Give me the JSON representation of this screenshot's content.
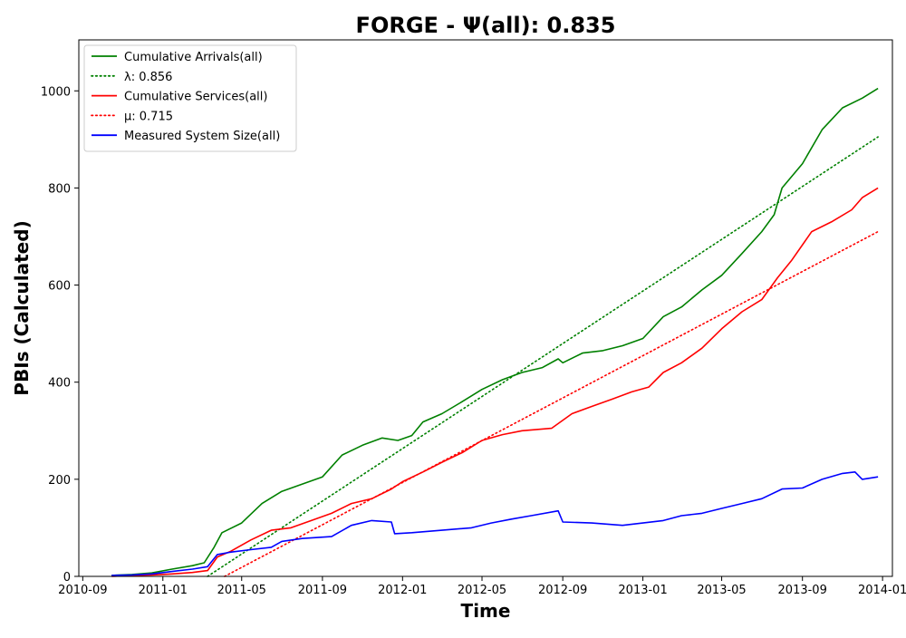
{
  "chart_data": {
    "type": "line",
    "title": "FORGE -  Ψ(all): 0.835",
    "xlabel": "Time",
    "ylabel": "PBIs (Calculated)",
    "x_ticks": [
      "2010-09",
      "2011-01",
      "2011-05",
      "2011-09",
      "2012-01",
      "2012-05",
      "2012-09",
      "2013-01",
      "2013-05",
      "2013-09",
      "2014-01"
    ],
    "y_ticks": [
      0,
      200,
      400,
      600,
      800,
      1000
    ],
    "xlim": [
      "2010-08-26",
      "2014-01-16"
    ],
    "ylim": [
      0,
      1105
    ],
    "grid": false,
    "legend_position": "upper left",
    "series": [
      {
        "name": "Cumulative Arrivals(all)",
        "color": "#008000",
        "style": "solid",
        "points": [
          [
            "2010-10-15",
            2
          ],
          [
            "2010-11-15",
            4
          ],
          [
            "2010-12-15",
            7
          ],
          [
            "2011-01-15",
            15
          ],
          [
            "2011-02-15",
            22
          ],
          [
            "2011-03-05",
            28
          ],
          [
            "2011-03-20",
            60
          ],
          [
            "2011-04-01",
            90
          ],
          [
            "2011-05-01",
            110
          ],
          [
            "2011-06-01",
            150
          ],
          [
            "2011-07-01",
            175
          ],
          [
            "2011-08-01",
            190
          ],
          [
            "2011-09-01",
            205
          ],
          [
            "2011-10-01",
            250
          ],
          [
            "2011-11-01",
            270
          ],
          [
            "2011-12-01",
            285
          ],
          [
            "2011-12-25",
            280
          ],
          [
            "2012-01-15",
            290
          ],
          [
            "2012-02-01",
            318
          ],
          [
            "2012-03-01",
            335
          ],
          [
            "2012-04-01",
            360
          ],
          [
            "2012-05-01",
            385
          ],
          [
            "2012-06-01",
            405
          ],
          [
            "2012-07-01",
            420
          ],
          [
            "2012-08-01",
            430
          ],
          [
            "2012-08-25",
            448
          ],
          [
            "2012-09-01",
            440
          ],
          [
            "2012-10-01",
            460
          ],
          [
            "2012-11-01",
            465
          ],
          [
            "2012-12-01",
            475
          ],
          [
            "2013-01-01",
            490
          ],
          [
            "2013-02-01",
            535
          ],
          [
            "2013-03-01",
            555
          ],
          [
            "2013-04-01",
            590
          ],
          [
            "2013-05-01",
            620
          ],
          [
            "2013-06-01",
            665
          ],
          [
            "2013-07-01",
            710
          ],
          [
            "2013-07-20",
            745
          ],
          [
            "2013-08-01",
            800
          ],
          [
            "2013-09-01",
            850
          ],
          [
            "2013-10-01",
            920
          ],
          [
            "2013-11-01",
            965
          ],
          [
            "2013-12-01",
            985
          ],
          [
            "2013-12-25",
            1005
          ]
        ]
      },
      {
        "name": "λ: 0.856",
        "color": "#008000",
        "style": "dotted",
        "points": [
          [
            "2011-03-10",
            0
          ],
          [
            "2013-12-25",
            905
          ]
        ]
      },
      {
        "name": "Cumulative Services(all)",
        "color": "#ff0000",
        "style": "solid",
        "points": [
          [
            "2010-10-15",
            0
          ],
          [
            "2010-11-15",
            2
          ],
          [
            "2010-12-15",
            3
          ],
          [
            "2011-01-15",
            5
          ],
          [
            "2011-02-15",
            8
          ],
          [
            "2011-03-10",
            12
          ],
          [
            "2011-03-25",
            40
          ],
          [
            "2011-04-15",
            52
          ],
          [
            "2011-05-15",
            75
          ],
          [
            "2011-06-15",
            95
          ],
          [
            "2011-07-15",
            100
          ],
          [
            "2011-08-15",
            115
          ],
          [
            "2011-09-15",
            130
          ],
          [
            "2011-10-15",
            150
          ],
          [
            "2011-11-15",
            160
          ],
          [
            "2011-12-15",
            180
          ],
          [
            "2012-01-01",
            195
          ],
          [
            "2012-02-01",
            215
          ],
          [
            "2012-03-01",
            235
          ],
          [
            "2012-04-01",
            255
          ],
          [
            "2012-05-01",
            280
          ],
          [
            "2012-06-01",
            292
          ],
          [
            "2012-07-01",
            300
          ],
          [
            "2012-08-15",
            305
          ],
          [
            "2012-09-15",
            335
          ],
          [
            "2012-10-15",
            350
          ],
          [
            "2012-11-15",
            365
          ],
          [
            "2012-12-15",
            380
          ],
          [
            "2013-01-10",
            390
          ],
          [
            "2013-02-01",
            420
          ],
          [
            "2013-03-01",
            440
          ],
          [
            "2013-04-01",
            470
          ],
          [
            "2013-05-01",
            510
          ],
          [
            "2013-06-01",
            545
          ],
          [
            "2013-07-01",
            570
          ],
          [
            "2013-07-25",
            615
          ],
          [
            "2013-08-15",
            650
          ],
          [
            "2013-09-15",
            710
          ],
          [
            "2013-10-15",
            730
          ],
          [
            "2013-11-15",
            755
          ],
          [
            "2013-12-01",
            780
          ],
          [
            "2013-12-25",
            800
          ]
        ]
      },
      {
        "name": "μ: 0.715",
        "color": "#ff0000",
        "style": "dotted",
        "points": [
          [
            "2011-04-05",
            0
          ],
          [
            "2013-12-25",
            710
          ]
        ]
      },
      {
        "name": "Measured System Size(all)",
        "color": "#0000ff",
        "style": "solid",
        "points": [
          [
            "2010-10-15",
            2
          ],
          [
            "2010-11-15",
            3
          ],
          [
            "2010-12-15",
            5
          ],
          [
            "2011-01-15",
            10
          ],
          [
            "2011-02-15",
            15
          ],
          [
            "2011-03-10",
            20
          ],
          [
            "2011-03-25",
            45
          ],
          [
            "2011-04-15",
            50
          ],
          [
            "2011-05-15",
            55
          ],
          [
            "2011-06-15",
            60
          ],
          [
            "2011-07-01",
            72
          ],
          [
            "2011-08-01",
            78
          ],
          [
            "2011-09-15",
            82
          ],
          [
            "2011-10-15",
            105
          ],
          [
            "2011-11-15",
            115
          ],
          [
            "2011-12-15",
            112
          ],
          [
            "2011-12-20",
            88
          ],
          [
            "2012-01-15",
            90
          ],
          [
            "2012-03-01",
            95
          ],
          [
            "2012-04-15",
            100
          ],
          [
            "2012-05-15",
            110
          ],
          [
            "2012-06-15",
            118
          ],
          [
            "2012-07-15",
            125
          ],
          [
            "2012-08-25",
            135
          ],
          [
            "2012-09-01",
            112
          ],
          [
            "2012-10-15",
            110
          ],
          [
            "2012-12-01",
            105
          ],
          [
            "2013-01-01",
            110
          ],
          [
            "2013-02-01",
            115
          ],
          [
            "2013-03-01",
            125
          ],
          [
            "2013-04-01",
            130
          ],
          [
            "2013-05-01",
            140
          ],
          [
            "2013-06-01",
            150
          ],
          [
            "2013-07-01",
            160
          ],
          [
            "2013-08-01",
            180
          ],
          [
            "2013-09-01",
            182
          ],
          [
            "2013-10-01",
            200
          ],
          [
            "2013-11-01",
            212
          ],
          [
            "2013-11-20",
            215
          ],
          [
            "2013-12-01",
            200
          ],
          [
            "2013-12-25",
            205
          ]
        ]
      }
    ]
  }
}
